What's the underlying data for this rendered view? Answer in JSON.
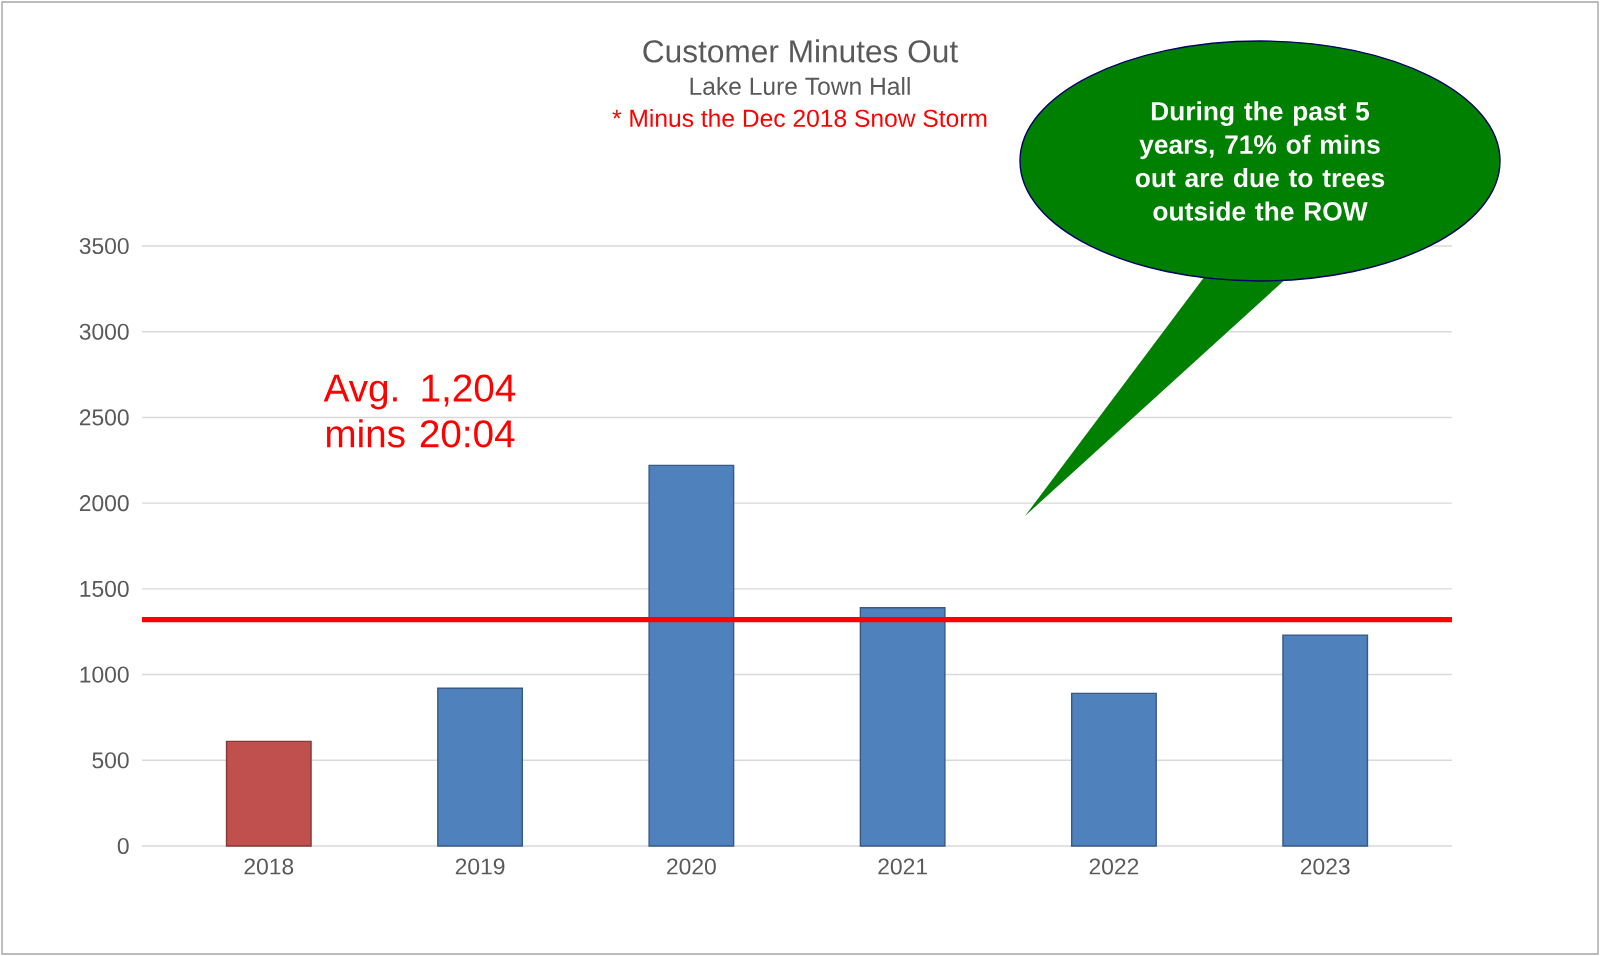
{
  "chart_data": {
    "type": "bar",
    "title": "Customer Minutes Out",
    "subtitle": "Lake Lure Town Hall",
    "categories": [
      "2018",
      "2019",
      "2020",
      "2021",
      "2022",
      "2023"
    ],
    "values": [
      610,
      920,
      2220,
      1390,
      890,
      1230
    ],
    "colors": [
      "#c0504d",
      "#4f81bd",
      "#4f81bd",
      "#4f81bd",
      "#4f81bd",
      "#4f81bd"
    ],
    "ylim": [
      0,
      3500
    ],
    "yticks": [
      0,
      500,
      1000,
      1500,
      2000,
      2500,
      3000,
      3500
    ],
    "grid": "y",
    "ref_lines": [
      {
        "axis": "y",
        "value": 1320,
        "color": "#ff0000"
      }
    ],
    "annotations": [
      "* Minus the Dec 2018 Snow Storm",
      "During the past 5 years, 71% of mins out are due to trees outside the ROW",
      "Avg. 1,204 mins 20:04"
    ]
  }
}
